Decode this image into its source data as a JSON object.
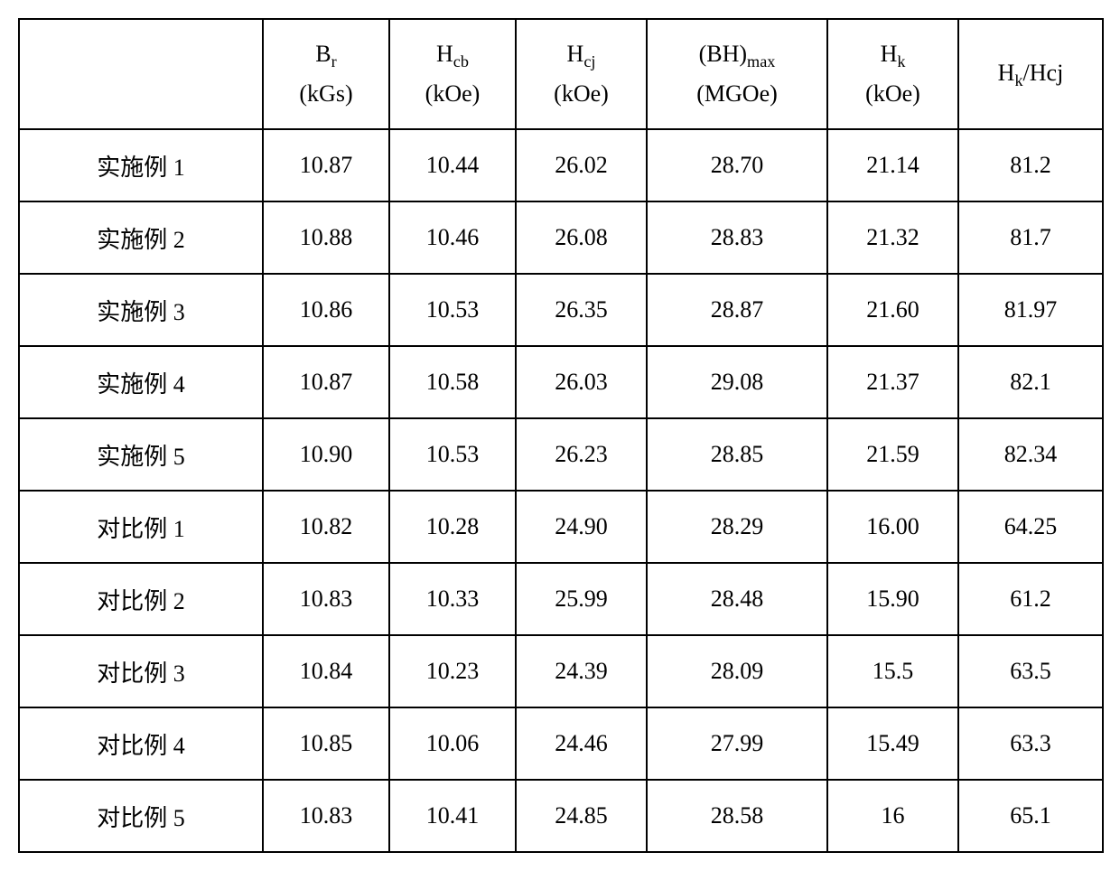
{
  "table": {
    "columns": [
      {
        "label_html": ""
      },
      {
        "label_html": "B<span class='sub'>r</span><br>(kGs)"
      },
      {
        "label_html": "H<span class='sub'>cb</span><br>(kOe)"
      },
      {
        "label_html": "H<span class='sub'>cj</span><br>(kOe)"
      },
      {
        "label_html": "(BH)<span class='sub'>max</span><br>(MGOe)"
      },
      {
        "label_html": "H<span class='sub'>k</span><br>(kOe)"
      },
      {
        "label_html": "H<span class='sub'>k</span>/Hcj"
      }
    ],
    "rows": [
      {
        "label": "实施例 1",
        "values": [
          "10.87",
          "10.44",
          "26.02",
          "28.70",
          "21.14",
          "81.2"
        ]
      },
      {
        "label": "实施例 2",
        "values": [
          "10.88",
          "10.46",
          "26.08",
          "28.83",
          "21.32",
          "81.7"
        ]
      },
      {
        "label": "实施例 3",
        "values": [
          "10.86",
          "10.53",
          "26.35",
          "28.87",
          "21.60",
          "81.97"
        ]
      },
      {
        "label": "实施例 4",
        "values": [
          "10.87",
          "10.58",
          "26.03",
          "29.08",
          "21.37",
          "82.1"
        ]
      },
      {
        "label": "实施例 5",
        "values": [
          "10.90",
          "10.53",
          "26.23",
          "28.85",
          "21.59",
          "82.34"
        ]
      },
      {
        "label": "对比例 1",
        "values": [
          "10.82",
          "10.28",
          "24.90",
          "28.29",
          "16.00",
          "64.25"
        ]
      },
      {
        "label": "对比例 2",
        "values": [
          "10.83",
          "10.33",
          "25.99",
          "28.48",
          "15.90",
          "61.2"
        ]
      },
      {
        "label": "对比例 3",
        "values": [
          "10.84",
          "10.23",
          "24.39",
          "28.09",
          "15.5",
          "63.5"
        ]
      },
      {
        "label": "对比例 4",
        "values": [
          "10.85",
          "10.06",
          "24.46",
          "27.99",
          "15.49",
          "63.3"
        ]
      },
      {
        "label": "对比例 5",
        "values": [
          "10.83",
          "10.41",
          "24.85",
          "28.58",
          "16",
          "65.1"
        ]
      }
    ],
    "border_color": "#000000",
    "background_color": "#ffffff",
    "font_family": "Times New Roman / SimSun",
    "header_fontsize": 26,
    "cell_fontsize": 26
  }
}
